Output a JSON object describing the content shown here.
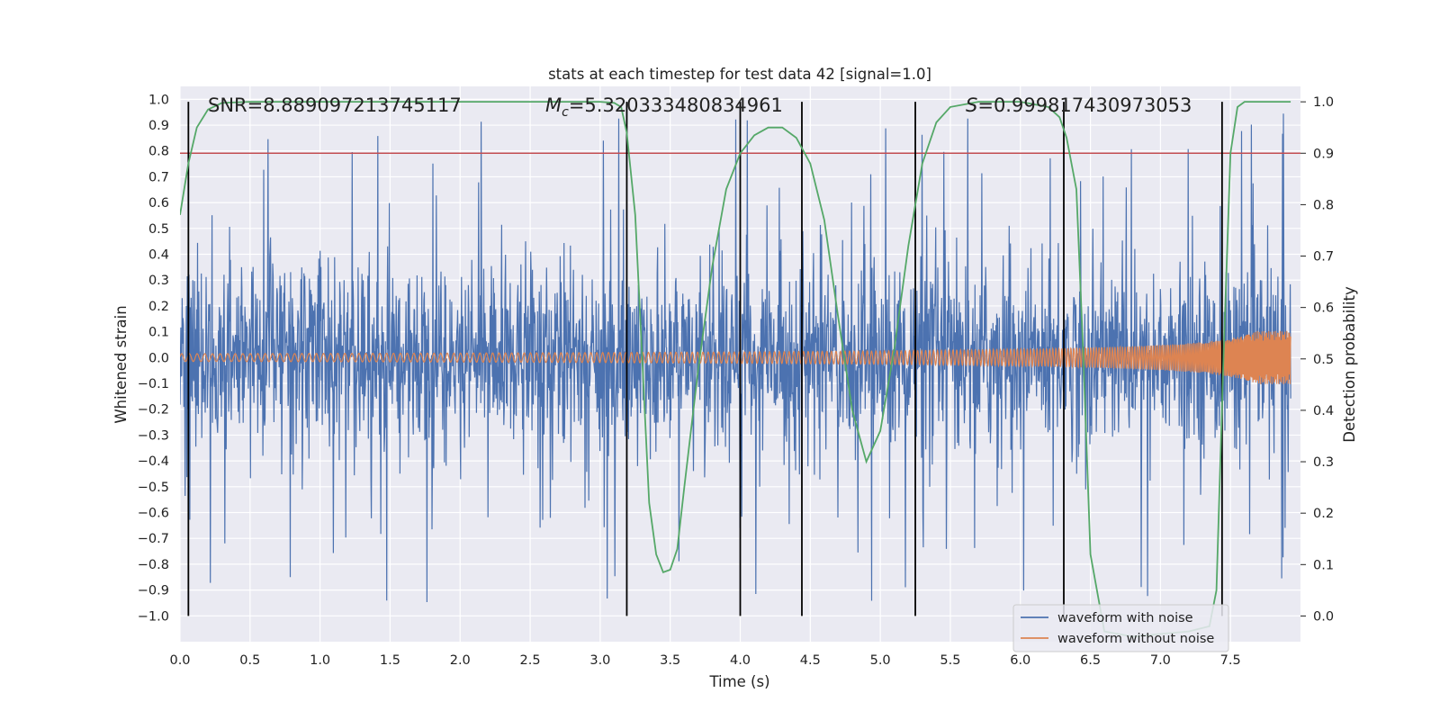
{
  "chart_data": {
    "type": "line",
    "title": "stats at each timestep for test data 42 [signal=1.0]",
    "xlabel": "Time (s)",
    "ylabel": "Whitened strain",
    "y2label": "Detection probability",
    "xlim": [
      0.0,
      8.0
    ],
    "ylim": [
      -1.1,
      1.05
    ],
    "y2lim": [
      -0.05,
      1.03
    ],
    "xticks": [
      "0.0",
      "0.5",
      "1.0",
      "1.5",
      "2.0",
      "2.5",
      "3.0",
      "3.5",
      "4.0",
      "4.5",
      "5.0",
      "5.5",
      "6.0",
      "6.5",
      "7.0",
      "7.5"
    ],
    "yticks": [
      "1.0",
      "0.9",
      "0.8",
      "0.7",
      "0.6",
      "0.5",
      "0.4",
      "0.3",
      "0.2",
      "0.1",
      "0.0",
      "-0.1",
      "-0.2",
      "-0.3",
      "-0.4",
      "-0.5",
      "-0.6",
      "-0.7",
      "-0.8",
      "-0.9",
      "-1.0"
    ],
    "y2ticks": [
      "1.0",
      "0.9",
      "0.8",
      "0.7",
      "0.6",
      "0.5",
      "0.4",
      "0.3",
      "0.2",
      "0.1",
      "0.0"
    ],
    "grid": true,
    "legend_position": "lower-right",
    "annotations": {
      "snr": "SNR=8.889097213745117",
      "mc": "=5.320333480834961",
      "mc_symbol": "M",
      "mc_sub": "c",
      "s": "=0.999817430973053",
      "s_symbol": "S"
    },
    "threshold": {
      "value": 0.9,
      "axis": "right",
      "color": "#c44e52"
    },
    "vlines": [
      0.06,
      3.19,
      4.0,
      4.44,
      5.25,
      6.31,
      7.44
    ],
    "series": [
      {
        "name": "waveform with noise",
        "color": "#4c72b0",
        "kind": "noise",
        "typical_envelope": 0.42,
        "peak_min": -0.96,
        "peak_max": 0.96
      },
      {
        "name": "waveform without noise",
        "color": "#dd8452",
        "kind": "chirp",
        "start_amplitude": 0.015,
        "end_amplitude": 0.25,
        "end_time": 7.93
      },
      {
        "color": "#55a868",
        "axis": "right",
        "kind": "probability",
        "x": [
          0.0,
          0.06,
          0.12,
          0.2,
          0.3,
          0.5,
          1.0,
          2.0,
          2.5,
          3.0,
          3.1,
          3.15,
          3.19,
          3.25,
          3.3,
          3.35,
          3.4,
          3.45,
          3.5,
          3.55,
          3.6,
          3.7,
          3.8,
          3.9,
          4.0,
          4.1,
          4.2,
          4.3,
          4.4,
          4.5,
          4.6,
          4.7,
          4.8,
          4.9,
          5.0,
          5.1,
          5.2,
          5.3,
          5.4,
          5.5,
          5.7,
          6.0,
          6.2,
          6.28,
          6.33,
          6.4,
          6.45,
          6.5,
          6.6,
          6.8,
          7.0,
          7.2,
          7.35,
          7.4,
          7.45,
          7.5,
          7.55,
          7.6,
          7.7,
          7.93
        ],
        "y": [
          0.78,
          0.88,
          0.95,
          0.985,
          0.998,
          1.0,
          1.0,
          1.0,
          1.0,
          1.0,
          0.998,
          0.99,
          0.94,
          0.78,
          0.5,
          0.22,
          0.12,
          0.085,
          0.09,
          0.13,
          0.25,
          0.48,
          0.68,
          0.83,
          0.9,
          0.935,
          0.95,
          0.95,
          0.93,
          0.88,
          0.77,
          0.58,
          0.4,
          0.3,
          0.36,
          0.52,
          0.72,
          0.88,
          0.96,
          0.99,
          1.0,
          1.0,
          0.99,
          0.97,
          0.93,
          0.83,
          0.5,
          0.12,
          -0.03,
          -0.04,
          -0.035,
          -0.03,
          -0.02,
          0.05,
          0.5,
          0.9,
          0.99,
          1.0,
          1.0,
          1.0
        ]
      }
    ]
  },
  "legend": {
    "items": [
      {
        "label": "waveform with noise",
        "color": "#4c72b0"
      },
      {
        "label": "waveform without noise",
        "color": "#dd8452"
      }
    ]
  }
}
